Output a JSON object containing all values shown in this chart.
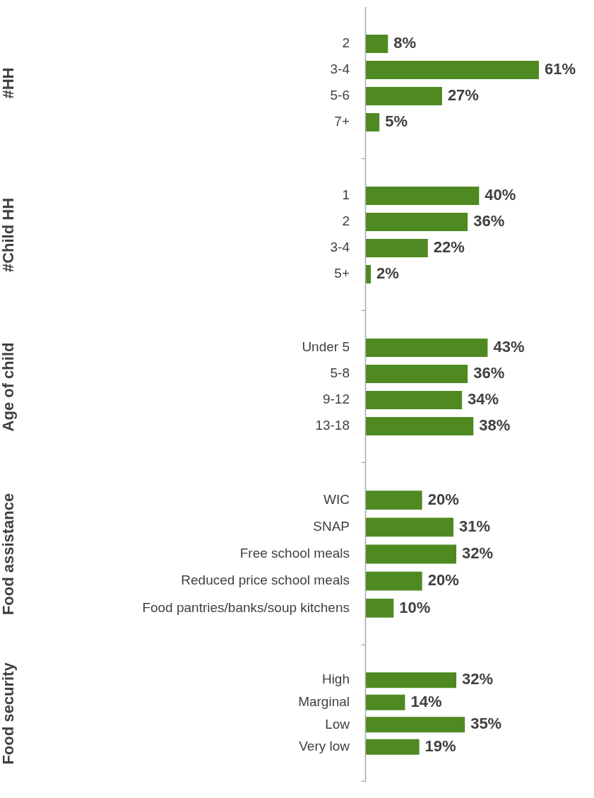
{
  "chart_data": [
    {
      "type": "bar",
      "orientation": "horizontal",
      "ylabel": "#HH",
      "categories": [
        "2",
        "3-4",
        "5-6",
        "7+"
      ],
      "values": [
        8,
        61,
        27,
        5
      ],
      "value_labels": [
        "8%",
        "61%",
        "27%",
        "5%"
      ],
      "color": "#4e8a21",
      "tick_labels": "y",
      "legend": false
    },
    {
      "type": "bar",
      "orientation": "horizontal",
      "ylabel": "#Child HH",
      "categories": [
        "1",
        "2",
        "3-4",
        "5+"
      ],
      "values": [
        40,
        36,
        22,
        2
      ],
      "value_labels": [
        "40%",
        "36%",
        "22%",
        "2%"
      ],
      "color": "#4e8a21",
      "tick_labels": "y",
      "legend": false
    },
    {
      "type": "bar",
      "orientation": "horizontal",
      "ylabel": "Age of child",
      "categories": [
        "Under 5",
        "5-8",
        "9-12",
        "13-18"
      ],
      "values": [
        43,
        36,
        34,
        38
      ],
      "value_labels": [
        "43%",
        "36%",
        "34%",
        "38%"
      ],
      "color": "#4e8a21",
      "tick_labels": "y",
      "legend": false
    },
    {
      "type": "bar",
      "orientation": "horizontal",
      "ylabel": "Food assistance",
      "categories": [
        "WIC",
        "SNAP",
        "Free school meals",
        "Reduced price school meals",
        "Food pantries/banks/soup kitchens"
      ],
      "values": [
        20,
        31,
        32,
        20,
        10
      ],
      "value_labels": [
        "20%",
        "31%",
        "32%",
        "20%",
        "10%"
      ],
      "color": "#4e8a21",
      "tick_labels": "y",
      "legend": false
    },
    {
      "type": "bar",
      "orientation": "horizontal",
      "ylabel": "Food security",
      "categories": [
        "High",
        "Marginal",
        "Low",
        "Very low"
      ],
      "values": [
        32,
        14,
        35,
        19
      ],
      "value_labels": [
        "32%",
        "14%",
        "35%",
        "19%"
      ],
      "color": "#4e8a21",
      "tick_labels": "y",
      "legend": false
    }
  ]
}
